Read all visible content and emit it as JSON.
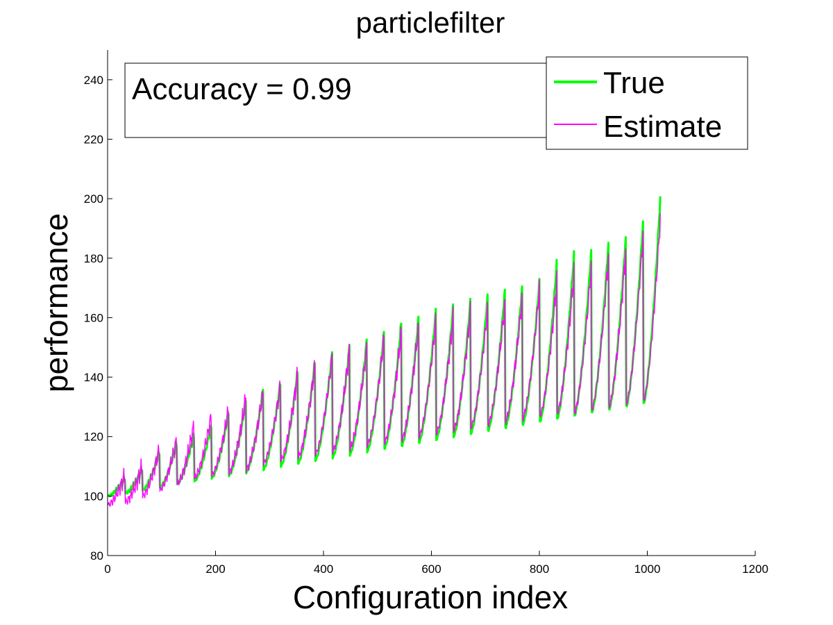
{
  "chart_data": {
    "type": "line",
    "title": "particlefilter",
    "xlabel": "Configuration index",
    "ylabel": "performance",
    "xlim": [
      0,
      1200
    ],
    "ylim": [
      80,
      250
    ],
    "xticks": [
      0,
      200,
      400,
      600,
      800,
      1000,
      1200
    ],
    "yticks": [
      80,
      100,
      120,
      140,
      160,
      180,
      200,
      220,
      240
    ],
    "grid": false,
    "legend_position": "top-right",
    "annotation": "Accuracy = 0.99",
    "num_points": 1024,
    "num_cycles": 32,
    "cycle_length": 32,
    "series": [
      {
        "name": "True",
        "color": "#00ff00",
        "cycle_start": [
          100,
          101,
          102,
          103,
          104,
          105,
          106,
          107,
          108,
          109,
          110,
          111,
          112,
          113,
          114,
          115,
          116,
          117,
          118,
          119,
          120,
          121,
          122,
          123,
          124,
          125,
          126,
          127,
          128,
          129,
          130,
          131
        ],
        "cycle_peak": [
          106,
          109,
          115,
          118,
          121,
          124,
          128,
          132,
          136,
          138,
          142,
          145,
          148,
          150,
          152,
          155,
          158,
          160,
          162,
          163,
          165,
          167,
          169,
          170,
          172,
          178,
          181,
          182,
          185,
          187,
          192,
          200
        ]
      },
      {
        "name": "Estimate",
        "color": "#ff00ff",
        "cycle_start": [
          97,
          98,
          100,
          102,
          104,
          106,
          107,
          108,
          109,
          111,
          112,
          113,
          114,
          115,
          116,
          117,
          118,
          119,
          120,
          121,
          122,
          123,
          124,
          125,
          126,
          127,
          128,
          128,
          129,
          130,
          131,
          132
        ],
        "cycle_peak": [
          107,
          110,
          116,
          119,
          124,
          127,
          129,
          133,
          135,
          137,
          141,
          144,
          147,
          149,
          150,
          153,
          155,
          157,
          159,
          160,
          162,
          163,
          165,
          167,
          170,
          172,
          175,
          177,
          181,
          183,
          188,
          193
        ]
      }
    ]
  }
}
